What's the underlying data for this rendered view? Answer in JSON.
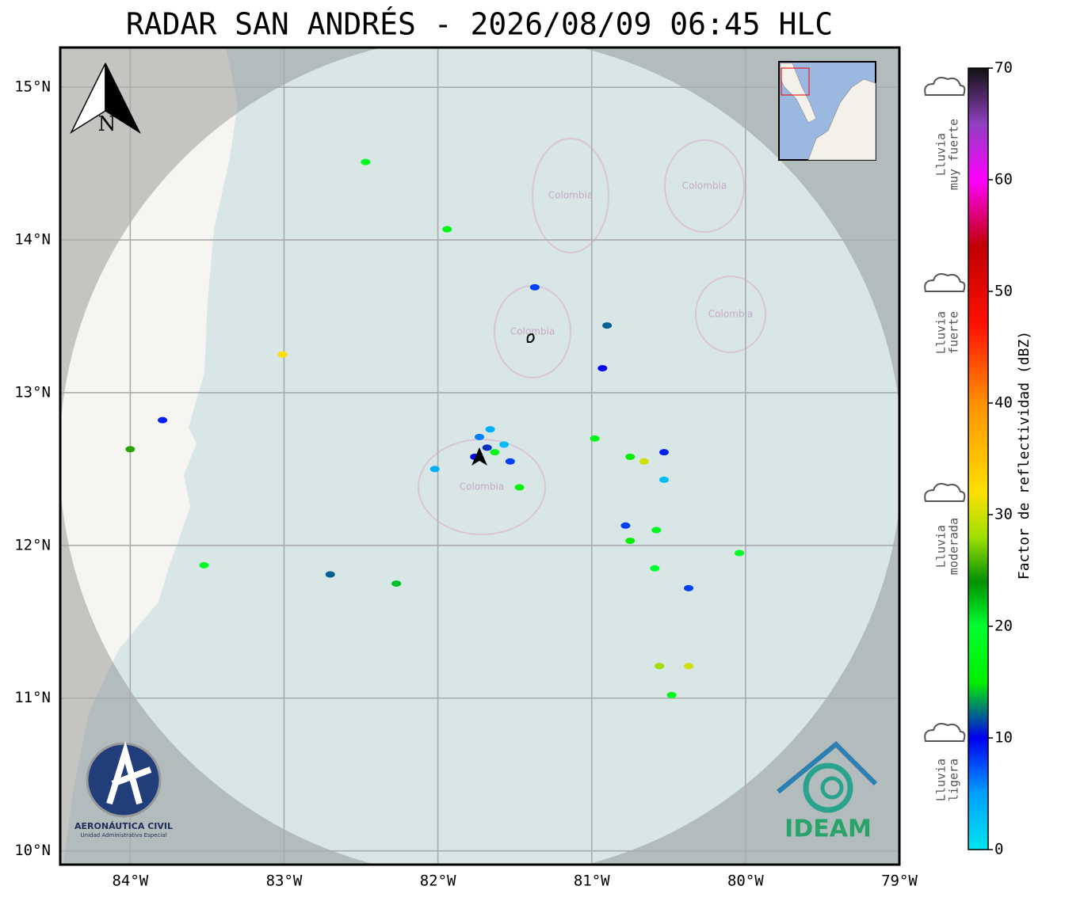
{
  "title": "RADAR SAN ANDRÉS - 2026/08/09 06:45 HLC",
  "map": {
    "xlim": [
      -84.455,
      -79.0
    ],
    "ylim": [
      9.91,
      15.26
    ],
    "xticks": [
      {
        "value": -84,
        "label": "84°W"
      },
      {
        "value": -83,
        "label": "83°W"
      },
      {
        "value": -82,
        "label": "82°W"
      },
      {
        "value": -81,
        "label": "81°W"
      },
      {
        "value": -80,
        "label": "80°W"
      },
      {
        "value": -79,
        "label": "79°W"
      }
    ],
    "yticks": [
      {
        "value": 10,
        "label": "10°N"
      },
      {
        "value": 11,
        "label": "11°N"
      },
      {
        "value": 12,
        "label": "12°N"
      },
      {
        "value": 13,
        "label": "13°N"
      },
      {
        "value": 14,
        "label": "14°N"
      },
      {
        "value": 15,
        "label": "15°N"
      }
    ],
    "grid": true,
    "radar": {
      "lon": -81.72,
      "lat": 12.58,
      "range_deg": 2.74
    },
    "north_label": "N",
    "region_labels": [
      "Colombia",
      "Colombia",
      "Colombia",
      "Colombia",
      "Colombia"
    ],
    "echoes": [
      {
        "lon": -82.47,
        "lat": 14.51,
        "dbz": 18
      },
      {
        "lon": -81.94,
        "lat": 14.07,
        "dbz": 17
      },
      {
        "lon": -81.37,
        "lat": 13.69,
        "dbz": 8
      },
      {
        "lon": -80.9,
        "lat": 13.44,
        "dbz": 12
      },
      {
        "lon": -80.93,
        "lat": 13.16,
        "dbz": 10
      },
      {
        "lon": -83.01,
        "lat": 13.25,
        "dbz": 32
      },
      {
        "lon": -83.79,
        "lat": 12.82,
        "dbz": 9
      },
      {
        "lon": -84.0,
        "lat": 12.63,
        "dbz": 25
      },
      {
        "lon": -81.68,
        "lat": 12.64,
        "dbz": 11
      },
      {
        "lon": -81.73,
        "lat": 12.71,
        "dbz": 6
      },
      {
        "lon": -81.57,
        "lat": 12.66,
        "dbz": 3
      },
      {
        "lon": -81.63,
        "lat": 12.61,
        "dbz": 18
      },
      {
        "lon": -81.76,
        "lat": 12.58,
        "dbz": 10
      },
      {
        "lon": -81.53,
        "lat": 12.55,
        "dbz": 8
      },
      {
        "lon": -81.66,
        "lat": 12.76,
        "dbz": 4
      },
      {
        "lon": -80.98,
        "lat": 12.7,
        "dbz": 18
      },
      {
        "lon": -80.75,
        "lat": 12.58,
        "dbz": 15
      },
      {
        "lon": -80.53,
        "lat": 12.61,
        "dbz": 9
      },
      {
        "lon": -80.66,
        "lat": 12.55,
        "dbz": 30
      },
      {
        "lon": -80.58,
        "lat": 12.1,
        "dbz": 18
      },
      {
        "lon": -80.75,
        "lat": 12.03,
        "dbz": 15
      },
      {
        "lon": -80.78,
        "lat": 12.13,
        "dbz": 8
      },
      {
        "lon": -80.59,
        "lat": 11.85,
        "dbz": 20
      },
      {
        "lon": -80.37,
        "lat": 11.72,
        "dbz": 8
      },
      {
        "lon": -80.04,
        "lat": 11.95,
        "dbz": 19
      },
      {
        "lon": -83.52,
        "lat": 11.87,
        "dbz": 19
      },
      {
        "lon": -82.7,
        "lat": 11.81,
        "dbz": 12
      },
      {
        "lon": -82.27,
        "lat": 11.75,
        "dbz": 14
      },
      {
        "lon": -80.56,
        "lat": 11.21,
        "dbz": 28
      },
      {
        "lon": -80.37,
        "lat": 11.21,
        "dbz": 30
      },
      {
        "lon": -80.48,
        "lat": 11.02,
        "dbz": 18
      },
      {
        "lon": -82.02,
        "lat": 12.5,
        "dbz": 4
      },
      {
        "lon": -81.47,
        "lat": 12.38,
        "dbz": 16
      },
      {
        "lon": -80.53,
        "lat": 12.43,
        "dbz": 3
      }
    ]
  },
  "colorbar": {
    "label": "Factor de reflectividad (dBZ)",
    "lim": [
      0,
      70
    ],
    "ticks": [
      0,
      10,
      20,
      30,
      40,
      50,
      60,
      70
    ],
    "colormap": [
      {
        "value": 0,
        "color": "#00e5ee"
      },
      {
        "value": 5,
        "color": "#00a0ff"
      },
      {
        "value": 10,
        "color": "#0000f0"
      },
      {
        "value": 15,
        "color": "#00f000"
      },
      {
        "value": 20,
        "color": "#00ff30"
      },
      {
        "value": 24,
        "color": "#009000"
      },
      {
        "value": 28,
        "color": "#a0e000"
      },
      {
        "value": 32,
        "color": "#ffe000"
      },
      {
        "value": 40,
        "color": "#ff9000"
      },
      {
        "value": 47,
        "color": "#ff1000"
      },
      {
        "value": 54,
        "color": "#c00000"
      },
      {
        "value": 60,
        "color": "#ff00ff"
      },
      {
        "value": 65,
        "color": "#9040c0"
      },
      {
        "value": 70,
        "color": "#101010"
      }
    ]
  },
  "legend": [
    {
      "lines": [
        "Lluvia",
        "muy fuerte"
      ]
    },
    {
      "lines": [
        "Lluvia",
        "fuerte"
      ]
    },
    {
      "lines": [
        "Lluvia",
        "moderada"
      ]
    },
    {
      "lines": [
        "Lluvia",
        "ligera"
      ]
    }
  ],
  "logos": {
    "left_title": "AERONÁUTICA CIVIL",
    "left_subtitle": "Unidad Administrativa Especial",
    "right": "IDEAM"
  }
}
